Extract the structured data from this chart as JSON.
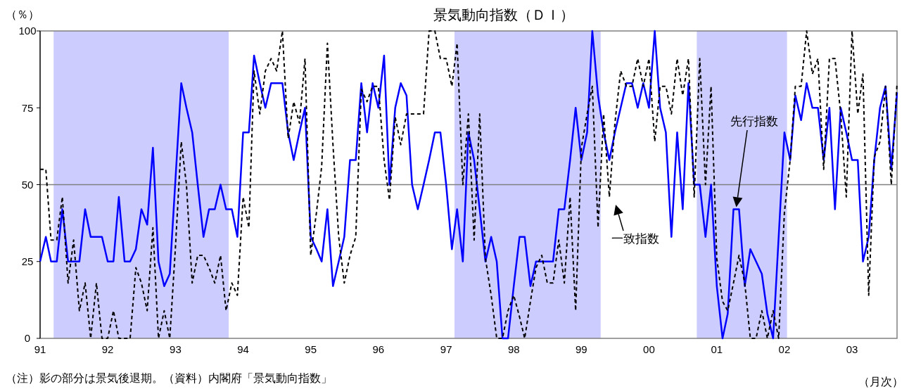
{
  "chart_data": {
    "type": "line",
    "title": "景気動向指数（ＤＩ）",
    "ylabel": "（％）",
    "xlabel": "（月次）",
    "annotations": [
      "（注）影の部分は景気後退期。（資料）内閣府「景気動向指数」"
    ],
    "x": [
      "1991-01",
      "1991-02",
      "1991-03",
      "1991-04",
      "1991-05",
      "1991-06",
      "1991-07",
      "1991-08",
      "1991-09",
      "1991-10",
      "1991-11",
      "1991-12",
      "1992-01",
      "1992-02",
      "1992-03",
      "1992-04",
      "1992-05",
      "1992-06",
      "1992-07",
      "1992-08",
      "1992-09",
      "1992-10",
      "1992-11",
      "1992-12",
      "1993-01",
      "1993-02",
      "1993-03",
      "1993-04",
      "1993-05",
      "1993-06",
      "1993-07",
      "1993-08",
      "1993-09",
      "1993-10",
      "1993-11",
      "1993-12",
      "1994-01",
      "1994-02",
      "1994-03",
      "1994-04",
      "1994-05",
      "1994-06",
      "1994-07",
      "1994-08",
      "1994-09",
      "1994-10",
      "1994-11",
      "1994-12",
      "1995-01",
      "1995-02",
      "1995-03",
      "1995-04",
      "1995-05",
      "1995-06",
      "1995-07",
      "1995-08",
      "1995-09",
      "1995-10",
      "1995-11",
      "1995-12",
      "1996-01",
      "1996-02",
      "1996-03",
      "1996-04",
      "1996-05",
      "1996-06",
      "1996-07",
      "1996-08",
      "1996-09",
      "1996-10",
      "1996-11",
      "1996-12",
      "1997-01",
      "1997-02",
      "1997-03",
      "1997-04",
      "1997-05",
      "1997-06",
      "1997-07",
      "1997-08",
      "1997-09",
      "1997-10",
      "1997-11",
      "1997-12",
      "1998-01",
      "1998-02",
      "1998-03",
      "1998-04",
      "1998-05",
      "1998-06",
      "1998-07",
      "1998-08",
      "1998-09",
      "1998-10",
      "1998-11",
      "1998-12",
      "1999-01",
      "1999-02",
      "1999-03",
      "1999-04",
      "1999-05",
      "1999-06",
      "1999-07",
      "1999-08",
      "1999-09",
      "1999-10",
      "1999-11",
      "1999-12",
      "2000-01",
      "2000-02",
      "2000-03",
      "2000-04",
      "2000-05",
      "2000-06",
      "2000-07",
      "2000-08",
      "2000-09",
      "2000-10",
      "2000-11",
      "2000-12",
      "2001-01",
      "2001-02",
      "2001-03",
      "2001-04",
      "2001-05",
      "2001-06",
      "2001-07",
      "2001-08",
      "2001-09",
      "2001-10",
      "2001-11",
      "2001-12",
      "2002-01",
      "2002-02",
      "2002-03",
      "2002-04",
      "2002-05",
      "2002-06",
      "2002-07",
      "2002-08",
      "2002-09",
      "2002-10",
      "2002-11",
      "2002-12",
      "2003-01",
      "2003-02",
      "2003-03",
      "2003-04",
      "2003-05",
      "2003-06",
      "2003-07",
      "2003-08",
      "2003-09"
    ],
    "series": [
      {
        "name": "先行指数",
        "color": "#0000ff",
        "line_style": "solid",
        "values": [
          25,
          33,
          25,
          25,
          42,
          25,
          25,
          25,
          42,
          33,
          33,
          33,
          25,
          25,
          46,
          25,
          25,
          29,
          42,
          37,
          62,
          25,
          17,
          21,
          52,
          83,
          75,
          67,
          50,
          33,
          42,
          42,
          50,
          42,
          42,
          33,
          67,
          67,
          92,
          83,
          75,
          83,
          83,
          83,
          67,
          58,
          67,
          75,
          33,
          29,
          25,
          42,
          17,
          25,
          33,
          58,
          58,
          83,
          67,
          83,
          75,
          92,
          50,
          75,
          83,
          79,
          50,
          42,
          50,
          58,
          67,
          67,
          50,
          29,
          42,
          25,
          67,
          58,
          42,
          25,
          33,
          25,
          0,
          0,
          17,
          33,
          33,
          17,
          25,
          25,
          25,
          25,
          42,
          42,
          58,
          75,
          58,
          67,
          100,
          79,
          67,
          58,
          67,
          75,
          83,
          83,
          75,
          83,
          75,
          100,
          75,
          67,
          33,
          67,
          42,
          83,
          50,
          50,
          33,
          50,
          17,
          0,
          8,
          42,
          42,
          17,
          29,
          25,
          21,
          8,
          0,
          33,
          67,
          58,
          79,
          71,
          83,
          75,
          75,
          58,
          75,
          42,
          75,
          67,
          58,
          58,
          25,
          33,
          58,
          75,
          82,
          55,
          80
        ]
      },
      {
        "name": "一致指数",
        "color": "#000000",
        "line_style": "dashed",
        "values": [
          55,
          55,
          32,
          32,
          46,
          18,
          32,
          9,
          18,
          0,
          18,
          0,
          0,
          9,
          0,
          0,
          0,
          23,
          18,
          9,
          36,
          0,
          9,
          0,
          30,
          64,
          50,
          18,
          27,
          27,
          23,
          18,
          27,
          9,
          18,
          14,
          46,
          36,
          87,
          73,
          87,
          91,
          87,
          100,
          65,
          77,
          70,
          91,
          27,
          41,
          56,
          96,
          63,
          33,
          18,
          27,
          33,
          81,
          77,
          82,
          82,
          58,
          45,
          72,
          63,
          73,
          73,
          73,
          73,
          100,
          100,
          91,
          91,
          82,
          96,
          50,
          73,
          32,
          73,
          26,
          14,
          0,
          0,
          9,
          14,
          7,
          0,
          12,
          23,
          27,
          18,
          18,
          32,
          18,
          46,
          9,
          62,
          73,
          82,
          36,
          73,
          46,
          70,
          87,
          82,
          82,
          91,
          82,
          91,
          64,
          82,
          82,
          73,
          91,
          79,
          91,
          46,
          91,
          50,
          82,
          26,
          12,
          9,
          18,
          27,
          18,
          0,
          0,
          9,
          0,
          9,
          0,
          41,
          58,
          82,
          82,
          100,
          86,
          91,
          55,
          91,
          91,
          73,
          46,
          100,
          73,
          86,
          14,
          59,
          64,
          82,
          50,
          83
        ]
      }
    ],
    "xlim": [
      "1991-01",
      "2003-09"
    ],
    "xticks": [
      {
        "value": "1991-01",
        "label": "91"
      },
      {
        "value": "1992-01",
        "label": "92"
      },
      {
        "value": "1993-01",
        "label": "93"
      },
      {
        "value": "1994-01",
        "label": "94"
      },
      {
        "value": "1995-01",
        "label": "95"
      },
      {
        "value": "1996-01",
        "label": "96"
      },
      {
        "value": "1997-01",
        "label": "97"
      },
      {
        "value": "1998-01",
        "label": "98"
      },
      {
        "value": "1999-01",
        "label": "99"
      },
      {
        "value": "2000-01",
        "label": "00"
      },
      {
        "value": "2001-01",
        "label": "01"
      },
      {
        "value": "2002-01",
        "label": "02"
      },
      {
        "value": "2003-01",
        "label": "03"
      }
    ],
    "ylim": [
      0,
      100
    ],
    "yticks": [
      0,
      25,
      50,
      75,
      100
    ],
    "bands": [
      {
        "axis": "x",
        "from": "1991-03-15",
        "to": "1993-10-15",
        "color": "#ccccff"
      },
      {
        "axis": "x",
        "from": "1997-02-15",
        "to": "1999-04-15",
        "color": "#ccccff"
      },
      {
        "axis": "x",
        "from": "2000-09-15",
        "to": "2002-01-15",
        "color": "#ccccff"
      }
    ],
    "ref_lines": [
      {
        "axis": "y",
        "value": 50,
        "color": "#808080"
      }
    ],
    "grid": false,
    "marker": "none"
  }
}
